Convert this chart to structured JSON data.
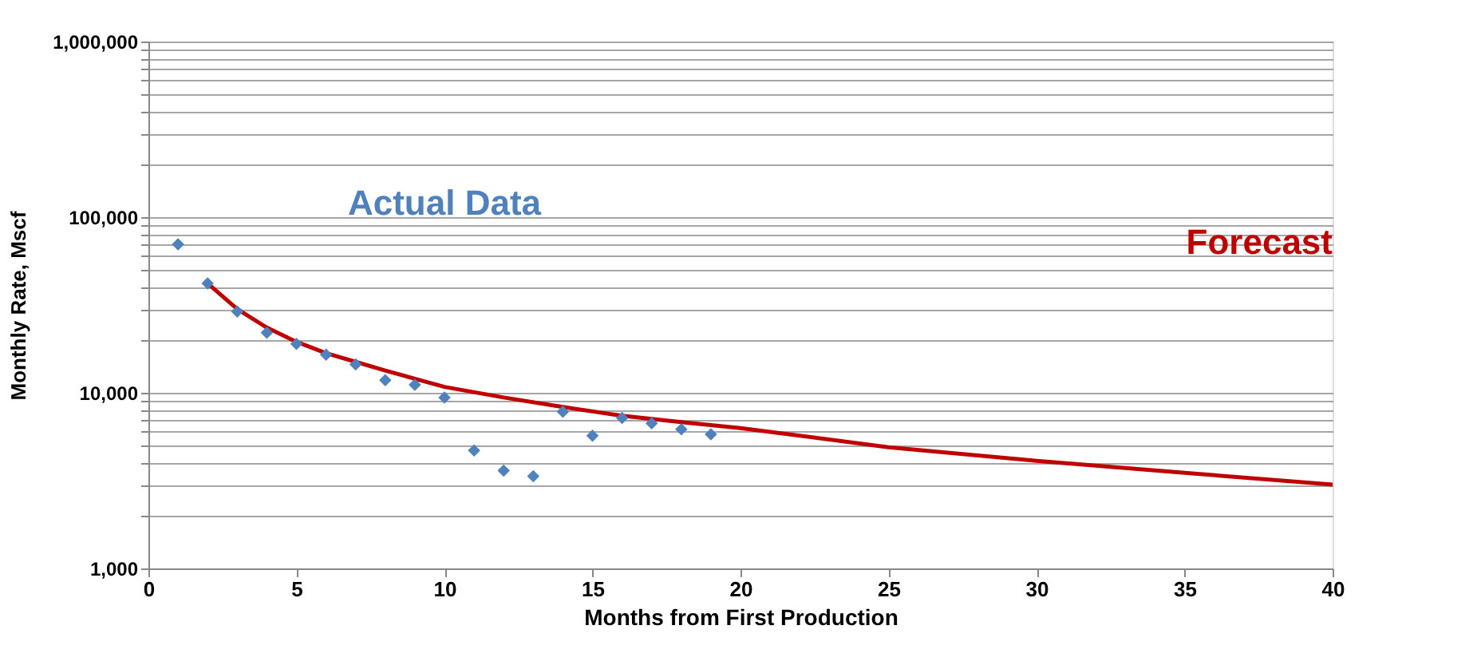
{
  "chart_data": {
    "type": "scatter",
    "xlabel": "Months from First Production",
    "ylabel": "Monthly Rate, Mscf",
    "log": "y",
    "grid": "y",
    "legend": false,
    "xlim": [
      0,
      40
    ],
    "xticks": [
      0,
      5,
      10,
      15,
      20,
      25,
      30,
      35,
      40
    ],
    "ylim": [
      1000,
      1000000
    ],
    "yticks": [
      {
        "value": 1000,
        "label": "1,000"
      },
      {
        "value": 2000,
        "label": null
      },
      {
        "value": 3000,
        "label": null
      },
      {
        "value": 4000,
        "label": null
      },
      {
        "value": 5000,
        "label": null
      },
      {
        "value": 6000,
        "label": null
      },
      {
        "value": 7000,
        "label": null
      },
      {
        "value": 8000,
        "label": null
      },
      {
        "value": 9000,
        "label": null
      },
      {
        "value": 10000,
        "label": "10,000"
      },
      {
        "value": 20000,
        "label": null
      },
      {
        "value": 30000,
        "label": null
      },
      {
        "value": 40000,
        "label": null
      },
      {
        "value": 50000,
        "label": null
      },
      {
        "value": 60000,
        "label": null
      },
      {
        "value": 70000,
        "label": null
      },
      {
        "value": 80000,
        "label": null
      },
      {
        "value": 90000,
        "label": null
      },
      {
        "value": 100000,
        "label": "100,000"
      },
      {
        "value": 200000,
        "label": null
      },
      {
        "value": 300000,
        "label": null
      },
      {
        "value": 400000,
        "label": null
      },
      {
        "value": 500000,
        "label": null
      },
      {
        "value": 600000,
        "label": null
      },
      {
        "value": 700000,
        "label": null
      },
      {
        "value": 800000,
        "label": null
      },
      {
        "value": 900000,
        "label": null
      },
      {
        "value": 1000000,
        "label": "1,000,000"
      }
    ],
    "series": [
      {
        "name": "Actual Data",
        "marker": "diamond",
        "color": "#4f81bd",
        "x": [
          1,
          2,
          3,
          4,
          5,
          6,
          7,
          8,
          9,
          10,
          11,
          12,
          13,
          14,
          15,
          16,
          17,
          18,
          19
        ],
        "values": [
          70000,
          42000,
          29000,
          22000,
          19000,
          16500,
          14500,
          11800,
          11100,
          9400,
          4700,
          3600,
          3350,
          7800,
          5700,
          7200,
          6700,
          6200,
          5800
        ]
      },
      {
        "name": "Forecast",
        "type": "line",
        "line_style": "solid",
        "color": "#c00000",
        "x": [
          2,
          3,
          4,
          5,
          6,
          7,
          8,
          10,
          12,
          14,
          16,
          18,
          20,
          25,
          30,
          35,
          40
        ],
        "values": [
          42000,
          30000,
          23500,
          19500,
          16800,
          15000,
          13400,
          10800,
          9400,
          8300,
          7400,
          6800,
          6300,
          4900,
          4100,
          3500,
          3000
        ]
      }
    ]
  }
}
